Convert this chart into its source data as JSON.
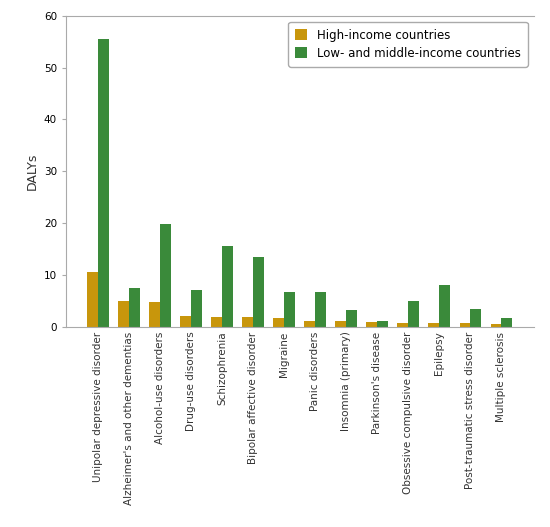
{
  "categories": [
    "Unipolar depressive disorder",
    "Alzheimer's and other dementias",
    "Alcohol-use disorders",
    "Drug-use disorders",
    "Schizophrenia",
    "Bipolar affective disorder",
    "Migraine",
    "Panic disorders",
    "Insomnia (primary)",
    "Parkinson's disease",
    "Obsessive compulsive disorder",
    "Epilepsy",
    "Post-traumatic stress disorder",
    "Multiple sclerosis"
  ],
  "hic_values": [
    10.5,
    5.0,
    4.7,
    2.0,
    1.8,
    1.8,
    1.6,
    1.1,
    1.1,
    1.0,
    0.8,
    0.8,
    0.7,
    0.5
  ],
  "lmic_values": [
    55.5,
    7.5,
    19.8,
    7.0,
    15.5,
    13.5,
    6.7,
    6.7,
    3.3,
    1.1,
    5.0,
    8.0,
    3.5,
    1.7
  ],
  "hic_color": "#c8960c",
  "lmic_color": "#3a8a3a",
  "hic_label": "High-income countries",
  "lmic_label": "Low- and middle-income countries",
  "ylabel": "DALYs",
  "ylim": [
    0,
    60
  ],
  "yticks": [
    0,
    10,
    20,
    30,
    40,
    50,
    60
  ],
  "bar_width": 0.35,
  "background_color": "#ffffff",
  "legend_fontsize": 8.5,
  "ylabel_fontsize": 9,
  "tick_label_fontsize": 7.5
}
